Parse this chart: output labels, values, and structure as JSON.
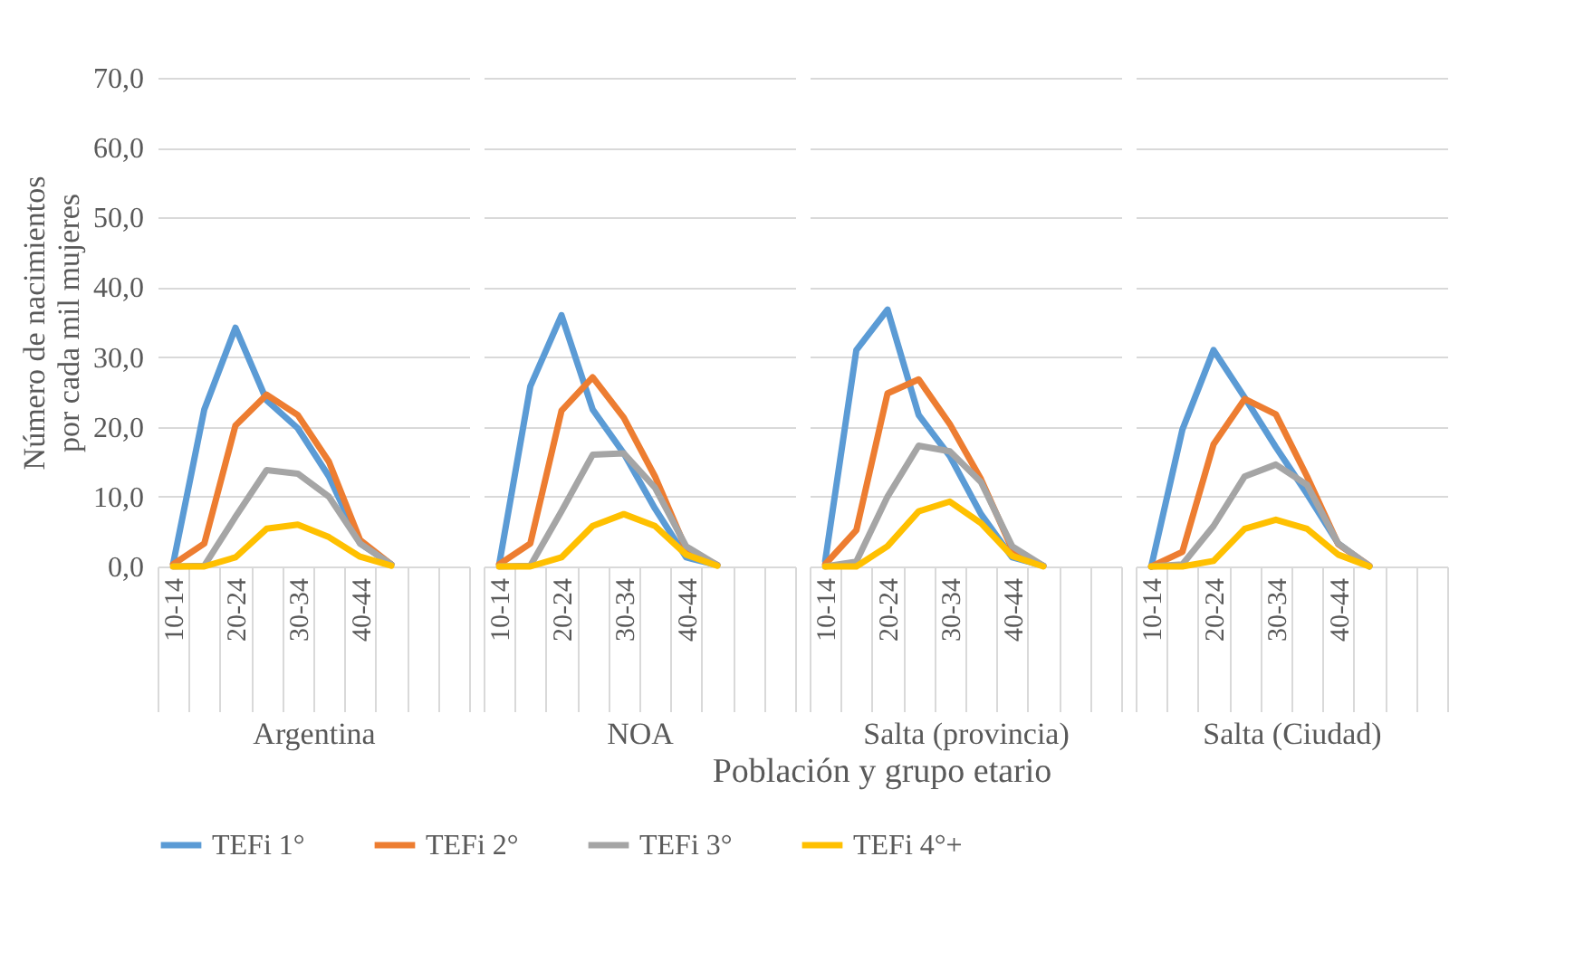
{
  "chart_data": [
    {
      "type": "line",
      "xlabel": "Argentina",
      "ylabel": "Número de nacimientos por cada mil mujeres",
      "categories": [
        "10-14",
        null,
        "20-24",
        null,
        "30-34",
        null,
        "40-44",
        null,
        null,
        null
      ],
      "ylim": [
        0,
        70
      ],
      "yticks": [
        {
          "value": 0,
          "label": "0,0"
        },
        {
          "value": 10,
          "label": "10,0"
        },
        {
          "value": 20,
          "label": "20,0"
        },
        {
          "value": 30,
          "label": "30,0"
        },
        {
          "value": 40,
          "label": "40,0"
        },
        {
          "value": 50,
          "label": "50,0"
        },
        {
          "value": 60,
          "label": "60,0"
        },
        {
          "value": 70,
          "label": "70,0"
        }
      ],
      "grid": "y",
      "legend": "bottom",
      "annotations": [
        "Población y grupo etario"
      ],
      "series": [
        {
          "name": "TEFi 1°",
          "color": "#5b9bd5",
          "values": [
            0.4,
            22.5,
            34.2,
            23.8,
            19.8,
            12.9,
            3.3,
            0.3,
            null,
            null
          ]
        },
        {
          "name": "TEFi 2°",
          "color": "#ed7d31",
          "values": [
            0.3,
            3.3,
            20.2,
            24.6,
            21.7,
            15.0,
            3.8,
            0.3,
            null,
            null
          ]
        },
        {
          "name": "TEFi 3°",
          "color": "#a5a5a5",
          "values": [
            0.0,
            0.1,
            7.1,
            13.8,
            13.3,
            10.0,
            3.3,
            0.3,
            null,
            null
          ]
        },
        {
          "name": "TEFi 4°+",
          "color": "#ffc000",
          "values": [
            0.0,
            0.0,
            1.3,
            5.4,
            6.0,
            4.2,
            1.4,
            0.1,
            null,
            null
          ]
        }
      ]
    },
    {
      "type": "line",
      "xlabel": "NOA",
      "categories": [
        "10-14",
        null,
        "20-24",
        null,
        "30-34",
        null,
        "40-44",
        null,
        null,
        null
      ],
      "ylim": [
        0,
        70
      ],
      "yticks": [
        0,
        10,
        20,
        30,
        40,
        50,
        60,
        70
      ],
      "grid": "y",
      "tick_labels": "x",
      "series": [
        {
          "name": "TEFi 1°",
          "color": "#5b9bd5",
          "values": [
            0.3,
            25.8,
            36.0,
            22.5,
            16.2,
            8.3,
            1.3,
            0.2,
            null,
            null
          ]
        },
        {
          "name": "TEFi 2°",
          "color": "#ed7d31",
          "values": [
            0.3,
            3.3,
            22.3,
            27.1,
            21.3,
            12.9,
            2.5,
            0.2,
            null,
            null
          ]
        },
        {
          "name": "TEFi 3°",
          "color": "#a5a5a5",
          "values": [
            0.0,
            0.1,
            7.9,
            16.0,
            16.2,
            11.3,
            2.9,
            0.2,
            null,
            null
          ]
        },
        {
          "name": "TEFi 4°+",
          "color": "#ffc000",
          "values": [
            0.0,
            0.0,
            1.3,
            5.8,
            7.5,
            5.8,
            1.7,
            0.1,
            null,
            null
          ]
        }
      ]
    },
    {
      "type": "line",
      "xlabel": "Salta (provincia)",
      "categories": [
        "10-14",
        null,
        "20-24",
        null,
        "30-34",
        null,
        "40-44",
        null,
        null,
        null
      ],
      "ylim": [
        0,
        70
      ],
      "yticks": [
        0,
        10,
        20,
        30,
        40,
        50,
        60,
        70
      ],
      "grid": "y",
      "tick_labels": "x",
      "series": [
        {
          "name": "TEFi 1°",
          "color": "#5b9bd5",
          "values": [
            0.8,
            31.0,
            36.8,
            21.7,
            15.8,
            7.5,
            1.3,
            0.1,
            null,
            null
          ]
        },
        {
          "name": "TEFi 2°",
          "color": "#ed7d31",
          "values": [
            0.3,
            5.2,
            24.8,
            26.8,
            20.4,
            12.5,
            2.5,
            0.1,
            null,
            null
          ]
        },
        {
          "name": "TEFi 3°",
          "color": "#a5a5a5",
          "values": [
            0.0,
            0.7,
            10.0,
            17.3,
            16.5,
            12.1,
            2.9,
            0.1,
            null,
            null
          ]
        },
        {
          "name": "TEFi 4°+",
          "color": "#ffc000",
          "values": [
            0.0,
            0.0,
            2.9,
            7.9,
            9.3,
            6.2,
            1.5,
            0.0,
            null,
            null
          ]
        }
      ]
    },
    {
      "type": "line",
      "xlabel": "Salta (Ciudad)",
      "categories": [
        "10-14",
        null,
        "20-24",
        null,
        "30-34",
        null,
        "40-44",
        null,
        null,
        null
      ],
      "ylim": [
        0,
        70
      ],
      "yticks": [
        0,
        10,
        20,
        30,
        40,
        50,
        60,
        70
      ],
      "grid": "y",
      "tick_labels": "x",
      "series": [
        {
          "name": "TEFi 1°",
          "color": "#5b9bd5",
          "values": [
            0.0,
            19.6,
            31.0,
            24.2,
            17.1,
            10.4,
            3.3,
            0.0,
            null,
            null
          ]
        },
        {
          "name": "TEFi 2°",
          "color": "#ed7d31",
          "values": [
            0.0,
            2.1,
            17.5,
            24.0,
            21.8,
            12.9,
            3.2,
            0.1,
            null,
            null
          ]
        },
        {
          "name": "TEFi 3°",
          "color": "#a5a5a5",
          "values": [
            0.0,
            0.3,
            5.8,
            12.9,
            14.6,
            11.7,
            3.3,
            0.1,
            null,
            null
          ]
        },
        {
          "name": "TEFi 4°+",
          "color": "#ffc000",
          "values": [
            0.0,
            0.0,
            0.8,
            5.4,
            6.7,
            5.4,
            1.7,
            0.0,
            null,
            null
          ]
        }
      ]
    }
  ]
}
